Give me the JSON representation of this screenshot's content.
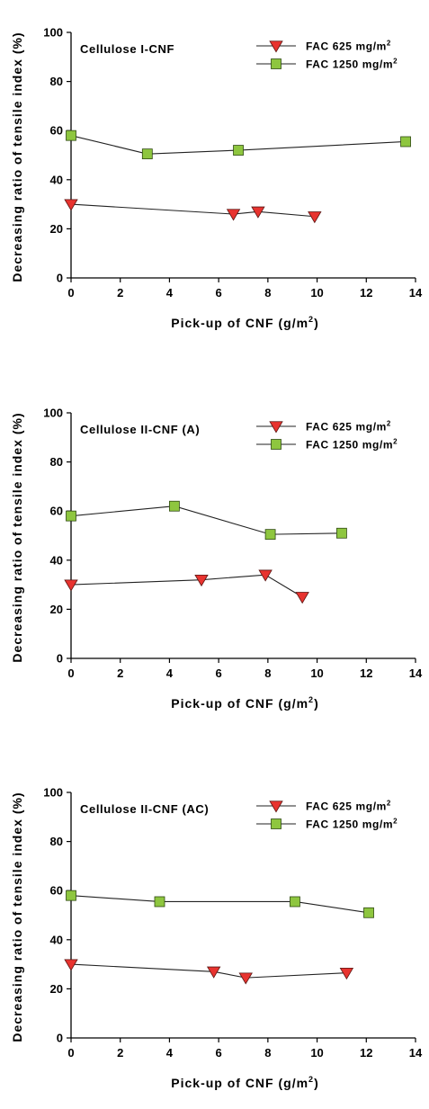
{
  "chart_data": [
    {
      "type": "line",
      "title": "Cellulose I-CNF",
      "xlabel": "Pick-up of CNF (g/m",
      "xlabel_sup": "2",
      "xlabel_end": ")",
      "ylabel": "Decreasing ratio of tensile index (%)",
      "xlim": [
        0,
        14
      ],
      "ylim": [
        0,
        100
      ],
      "xticks": [
        0,
        2,
        4,
        6,
        8,
        10,
        12,
        14
      ],
      "yticks": [
        0,
        20,
        40,
        60,
        80,
        100
      ],
      "legend_position": "top-right",
      "series": [
        {
          "name": "FAC 625 mg/m",
          "name_sup": "2",
          "marker": "triangle-down",
          "color": "#e8332f",
          "x": [
            0,
            6.6,
            7.6,
            9.9
          ],
          "y": [
            30,
            26,
            27,
            25
          ]
        },
        {
          "name": "FAC 1250 mg/m",
          "name_sup": "2",
          "marker": "square",
          "color": "#8ec63f",
          "x": [
            0,
            3.1,
            6.8,
            13.6
          ],
          "y": [
            58,
            50.5,
            52,
            55.5
          ]
        }
      ]
    },
    {
      "type": "line",
      "title": "Cellulose II-CNF (A)",
      "xlabel": "Pick-up of CNF (g/m",
      "xlabel_sup": "2",
      "xlabel_end": ")",
      "ylabel": "Decreasing ratio of tensile index (%)",
      "xlim": [
        0,
        14
      ],
      "ylim": [
        0,
        100
      ],
      "xticks": [
        0,
        2,
        4,
        6,
        8,
        10,
        12,
        14
      ],
      "yticks": [
        0,
        20,
        40,
        60,
        80,
        100
      ],
      "legend_position": "top-right",
      "series": [
        {
          "name": "FAC 625 mg/m",
          "name_sup": "2",
          "marker": "triangle-down",
          "color": "#e8332f",
          "x": [
            0,
            5.3,
            7.9,
            9.4
          ],
          "y": [
            30,
            32,
            34,
            25
          ]
        },
        {
          "name": "FAC 1250 mg/m",
          "name_sup": "2",
          "marker": "square",
          "color": "#8ec63f",
          "x": [
            0,
            4.2,
            8.1,
            11
          ],
          "y": [
            58,
            62,
            50.5,
            51
          ]
        }
      ]
    },
    {
      "type": "line",
      "title": "Cellulose II-CNF (AC)",
      "xlabel": "Pick-up of CNF (g/m",
      "xlabel_sup": "2",
      "xlabel_end": ")",
      "ylabel": "Decreasing ratio of tensile index (%)",
      "xlim": [
        0,
        14
      ],
      "ylim": [
        0,
        100
      ],
      "xticks": [
        0,
        2,
        4,
        6,
        8,
        10,
        12,
        14
      ],
      "yticks": [
        0,
        20,
        40,
        60,
        80,
        100
      ],
      "legend_position": "top-right",
      "series": [
        {
          "name": "FAC 625 mg/m",
          "name_sup": "2",
          "marker": "triangle-down",
          "color": "#e8332f",
          "x": [
            0,
            5.8,
            7.1,
            11.2
          ],
          "y": [
            30,
            27,
            24.5,
            26.5
          ]
        },
        {
          "name": "FAC 1250 mg/m",
          "name_sup": "2",
          "marker": "square",
          "color": "#8ec63f",
          "x": [
            0,
            3.6,
            9.1,
            12.1
          ],
          "y": [
            58,
            55.5,
            55.5,
            51
          ]
        }
      ]
    }
  ]
}
